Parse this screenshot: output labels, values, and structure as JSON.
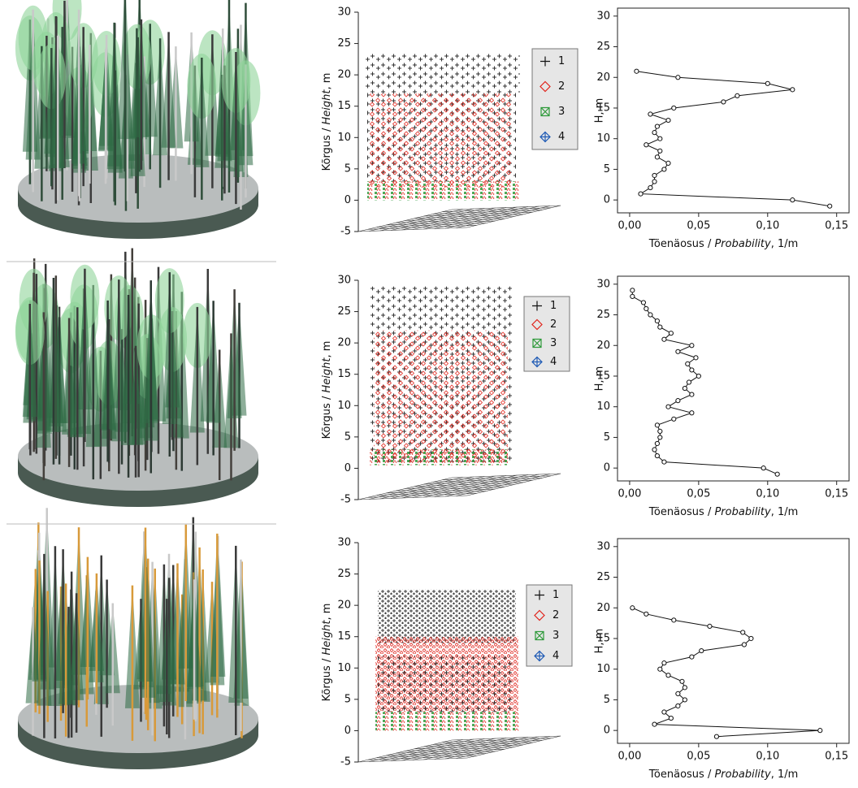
{
  "chart_data": [
    {
      "type": "scatter3d",
      "ylabel": [
        "Kõrgus / ",
        "Height",
        ", m"
      ],
      "ylim": [
        -5,
        30
      ],
      "yticks": [
        -5,
        0,
        5,
        10,
        15,
        20,
        25,
        30
      ],
      "series": [
        {
          "name": "1",
          "color": "#111111"
        },
        {
          "name": "2",
          "color": "#e0241c"
        },
        {
          "name": "3",
          "color": "#2e9a3a"
        },
        {
          "name": "4",
          "color": "#1f5bb5"
        }
      ],
      "legend": "right"
    },
    {
      "type": "line",
      "xlabel": [
        "Tõenäosus / ",
        "Probability",
        ", 1/m"
      ],
      "ylabel": "H, m",
      "xlim": [
        -0.0088,
        0.159
      ],
      "ylim": [
        -2.1,
        31.3
      ],
      "xticks": [
        {
          "value": 0,
          "label": "0,00"
        },
        {
          "value": 0.05,
          "label": "0,05"
        },
        {
          "value": 0.1,
          "label": "0,10"
        },
        {
          "value": 0.15,
          "label": "0,15"
        }
      ],
      "yticks": [
        0,
        5,
        10,
        15,
        20,
        25,
        30
      ],
      "y": [
        -1,
        0,
        1,
        2,
        3,
        4,
        5,
        6,
        7,
        8,
        9,
        10,
        11,
        12,
        13,
        14,
        15,
        16,
        17,
        18,
        19,
        20,
        21
      ],
      "values": [
        0.145,
        0.118,
        0.008,
        0.015,
        0.018,
        0.018,
        0.025,
        0.028,
        0.02,
        0.022,
        0.012,
        0.022,
        0.018,
        0.02,
        0.028,
        0.015,
        0.032,
        0.068,
        0.078,
        0.118,
        0.1,
        0.035,
        0.005
      ]
    },
    {
      "type": "scatter3d",
      "ylabel": [
        "Kõrgus / ",
        "Height",
        ", m"
      ],
      "ylim": [
        -5,
        30
      ],
      "yticks": [
        -5,
        0,
        5,
        10,
        15,
        20,
        25,
        30
      ],
      "series": [
        {
          "name": "1",
          "color": "#111111"
        },
        {
          "name": "2",
          "color": "#e0241c"
        },
        {
          "name": "3",
          "color": "#2e9a3a"
        },
        {
          "name": "4",
          "color": "#1f5bb5"
        }
      ],
      "legend": "right"
    },
    {
      "type": "line",
      "xlabel": [
        "Tõenäosus / ",
        "Probability",
        ", 1/m"
      ],
      "ylabel": "H, m",
      "xlim": [
        -0.0088,
        0.159
      ],
      "ylim": [
        -2.1,
        31.3
      ],
      "xticks": [
        {
          "value": 0,
          "label": "0,00"
        },
        {
          "value": 0.05,
          "label": "0,05"
        },
        {
          "value": 0.1,
          "label": "0,10"
        },
        {
          "value": 0.15,
          "label": "0,15"
        }
      ],
      "yticks": [
        0,
        5,
        10,
        15,
        20,
        25,
        30
      ],
      "y": [
        -1,
        0,
        1,
        2,
        3,
        4,
        5,
        6,
        7,
        8,
        9,
        10,
        11,
        12,
        13,
        14,
        15,
        16,
        17,
        18,
        19,
        20,
        21,
        22,
        23,
        24,
        25,
        26,
        27,
        28,
        29
      ],
      "values": [
        0.107,
        0.097,
        0.025,
        0.02,
        0.018,
        0.02,
        0.022,
        0.022,
        0.02,
        0.032,
        0.045,
        0.028,
        0.035,
        0.045,
        0.04,
        0.043,
        0.05,
        0.045,
        0.042,
        0.048,
        0.035,
        0.045,
        0.025,
        0.03,
        0.022,
        0.02,
        0.015,
        0.012,
        0.01,
        0.002,
        0.002
      ]
    },
    {
      "type": "scatter3d",
      "ylabel": [
        "Kõrgus / ",
        "Height",
        ", m"
      ],
      "ylim": [
        -5,
        30
      ],
      "yticks": [
        -5,
        0,
        5,
        10,
        15,
        20,
        25,
        30
      ],
      "series": [
        {
          "name": "1",
          "color": "#111111"
        },
        {
          "name": "2",
          "color": "#e0241c"
        },
        {
          "name": "3",
          "color": "#2e9a3a"
        },
        {
          "name": "4",
          "color": "#1f5bb5"
        }
      ],
      "legend": "right"
    },
    {
      "type": "line",
      "xlabel": [
        "Tõenäosus / ",
        "Probability",
        ", 1/m"
      ],
      "ylabel": "H, m",
      "xlim": [
        -0.0088,
        0.159
      ],
      "ylim": [
        -2.1,
        31.3
      ],
      "xticks": [
        {
          "value": 0,
          "label": "0,00"
        },
        {
          "value": 0.05,
          "label": "0,05"
        },
        {
          "value": 0.1,
          "label": "0,10"
        },
        {
          "value": 0.15,
          "label": "0,15"
        }
      ],
      "yticks": [
        0,
        5,
        10,
        15,
        20,
        25,
        30
      ],
      "y": [
        -1,
        0,
        1,
        2,
        3,
        4,
        5,
        6,
        7,
        8,
        9,
        10,
        11,
        12,
        13,
        14,
        15,
        16,
        17,
        18,
        19,
        20
      ],
      "values": [
        0.063,
        0.138,
        0.018,
        0.03,
        0.025,
        0.035,
        0.04,
        0.035,
        0.04,
        0.038,
        0.028,
        0.022,
        0.025,
        0.045,
        0.052,
        0.083,
        0.088,
        0.082,
        0.058,
        0.032,
        0.012,
        0.002
      ]
    }
  ]
}
